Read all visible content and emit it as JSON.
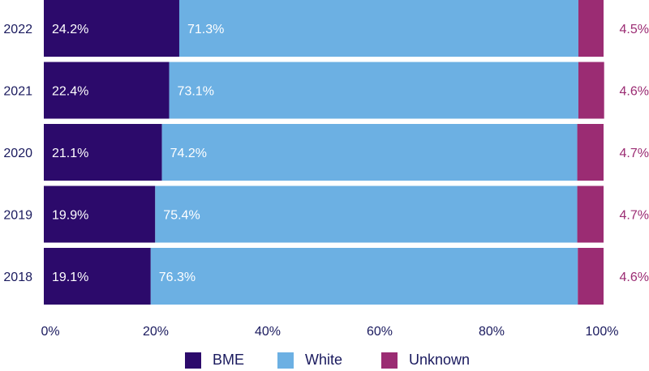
{
  "chart_data": {
    "type": "bar",
    "orientation": "horizontal",
    "stacked": true,
    "categories": [
      "2022",
      "2021",
      "2020",
      "2019",
      "2018"
    ],
    "series": [
      {
        "name": "BME",
        "values": [
          24.2,
          22.4,
          21.1,
          19.9,
          19.1
        ],
        "labels": [
          "24.2%",
          "22.4%",
          "21.1%",
          "19.9%",
          "19.1%"
        ],
        "color": "#2c0a6b"
      },
      {
        "name": "White",
        "values": [
          71.3,
          73.1,
          74.2,
          75.4,
          76.3
        ],
        "labels": [
          "71.3%",
          "73.1%",
          "74.2%",
          "75.4%",
          "76.3%"
        ],
        "color": "#6cb0e3"
      },
      {
        "name": "Unknown",
        "values": [
          4.5,
          4.6,
          4.7,
          4.7,
          4.6
        ],
        "labels": [
          "4.5%",
          "4.6%",
          "4.7%",
          "4.7%",
          "4.6%"
        ],
        "color": "#9b2c73"
      }
    ],
    "x_ticks": [
      "0%",
      "20%",
      "40%",
      "60%",
      "80%",
      "100%"
    ],
    "xlim": [
      0,
      100
    ],
    "grid": false,
    "legend_position": "bottom"
  },
  "colors": {
    "axis_text": "#1a1a5e",
    "bar_label": "#ffffff",
    "unknown_label": "#9b2c73"
  }
}
